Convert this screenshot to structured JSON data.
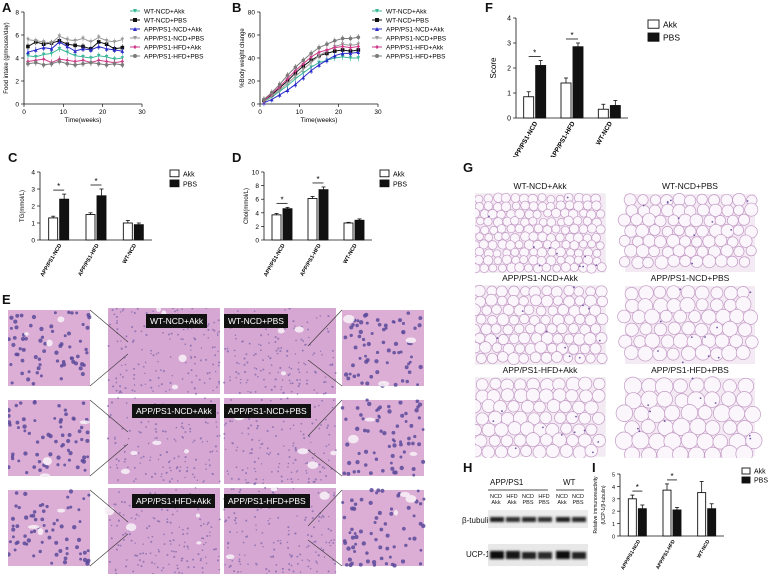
{
  "panels": {
    "A": "A",
    "B": "B",
    "C": "C",
    "D": "D",
    "E": "E",
    "F": "F",
    "G": "G",
    "H": "H",
    "I": "I"
  },
  "colors": {
    "wt_ncd_akk": "#3cb89a",
    "wt_ncd_pbs": "#111111",
    "app_ncd_akk": "#2a2ac8",
    "app_ncd_pbs": "#9a9a9a",
    "app_hfd_akk": "#d0388a",
    "app_hfd_pbs": "#7a7a7a",
    "liver_pink": "#d9a6cf",
    "fat_pink": "#e6cce6"
  },
  "legend_six": [
    {
      "label": "WT-NCD+Akk",
      "color": "#3cb89a",
      "marker": "triangle-down"
    },
    {
      "label": "WT-NCD+PBS",
      "color": "#111111",
      "marker": "square"
    },
    {
      "label": "APP/PS1-NCD+Akk",
      "color": "#2a2ac8",
      "marker": "triangle"
    },
    {
      "label": "APP/PS1-NCD+PBS",
      "color": "#9a9a9a",
      "marker": "triangle-down"
    },
    {
      "label": "APP/PS1-HFD+Akk",
      "color": "#d0388a",
      "marker": "diamond"
    },
    {
      "label": "APP/PS1-HFD+PBS",
      "color": "#7a7a7a",
      "marker": "circle"
    }
  ],
  "legend_two": {
    "akk": "Akk",
    "pbs": "PBS"
  },
  "chart_data": [
    {
      "id": "A",
      "type": "line",
      "xlabel": "Time(weeks)",
      "ylabel": "Food intake (g/mouse/day)",
      "xlim": [
        0,
        30
      ],
      "ylim": [
        0,
        8
      ],
      "xticks": [
        0,
        10,
        20,
        30
      ],
      "yticks": [
        0,
        2,
        4,
        6,
        8
      ],
      "x": [
        1,
        3,
        5,
        7,
        9,
        11,
        13,
        15,
        17,
        19,
        21,
        23,
        25
      ],
      "series": [
        {
          "name": "WT-NCD+Akk",
          "values": [
            4.2,
            4.1,
            4.3,
            4.4,
            4.8,
            4.5,
            4.2,
            4.1,
            4.0,
            4.2,
            4.1,
            3.9,
            4.0
          ]
        },
        {
          "name": "WT-NCD+PBS",
          "values": [
            5.0,
            5.4,
            5.2,
            5.3,
            5.5,
            5.2,
            5.1,
            5.0,
            4.8,
            5.4,
            5.2,
            4.8,
            4.9
          ]
        },
        {
          "name": "APP/PS1-NCD+Akk",
          "values": [
            4.5,
            4.7,
            4.9,
            4.8,
            5.4,
            5.0,
            4.6,
            4.8,
            4.7,
            5.0,
            4.8,
            4.7,
            4.6
          ]
        },
        {
          "name": "APP/PS1-NCD+PBS",
          "values": [
            5.6,
            5.5,
            5.4,
            5.3,
            5.9,
            5.6,
            5.5,
            5.7,
            5.4,
            5.8,
            5.5,
            5.4,
            5.6
          ]
        },
        {
          "name": "APP/PS1-HFD+Akk",
          "values": [
            3.7,
            3.8,
            3.9,
            3.6,
            3.9,
            3.8,
            3.7,
            3.8,
            3.6,
            3.8,
            3.7,
            3.6,
            3.7
          ]
        },
        {
          "name": "APP/PS1-HFD+PBS",
          "values": [
            3.5,
            3.6,
            3.4,
            3.5,
            3.7,
            3.5,
            3.4,
            3.5,
            3.6,
            3.5,
            3.4,
            3.5,
            3.4
          ]
        }
      ]
    },
    {
      "id": "B",
      "type": "line",
      "xlabel": "Time(weeks)",
      "ylabel": "%Body weight change",
      "xlim": [
        0,
        30
      ],
      "ylim": [
        0,
        80
      ],
      "xticks": [
        0,
        10,
        20,
        30
      ],
      "yticks": [
        0,
        20,
        40,
        60,
        80
      ],
      "x": [
        1,
        3,
        5,
        7,
        9,
        11,
        13,
        15,
        17,
        19,
        21,
        23,
        25
      ],
      "series": [
        {
          "name": "WT-NCD+Akk",
          "values": [
            2,
            6,
            11,
            16,
            22,
            27,
            32,
            36,
            38,
            40,
            41,
            40,
            40
          ]
        },
        {
          "name": "WT-NCD+PBS",
          "values": [
            3,
            8,
            14,
            20,
            27,
            33,
            38,
            42,
            44,
            46,
            47,
            46,
            47
          ]
        },
        {
          "name": "APP/PS1-NCD+Akk",
          "values": [
            1,
            4,
            8,
            12,
            17,
            23,
            29,
            34,
            38,
            42,
            44,
            44,
            45
          ]
        },
        {
          "name": "APP/PS1-NCD+PBS",
          "values": [
            2,
            7,
            12,
            18,
            24,
            30,
            36,
            42,
            46,
            50,
            52,
            51,
            52
          ]
        },
        {
          "name": "APP/PS1-HFD+Akk",
          "values": [
            3,
            9,
            15,
            22,
            29,
            35,
            41,
            45,
            47,
            49,
            50,
            49,
            50
          ]
        },
        {
          "name": "APP/PS1-HFD+PBS",
          "values": [
            4,
            10,
            17,
            25,
            32,
            38,
            44,
            49,
            52,
            55,
            57,
            57,
            58
          ]
        }
      ]
    },
    {
      "id": "C",
      "type": "bar",
      "ylabel": "TG(mmol/L)",
      "ylim": [
        0,
        4
      ],
      "yticks": [
        0,
        1,
        2,
        3,
        4
      ],
      "categories": [
        "APP/PS1-NCD",
        "APP/PS1-HFD",
        "WT-NCD"
      ],
      "series": [
        {
          "name": "Akk",
          "values": [
            1.3,
            1.5,
            1.0
          ],
          "errors": [
            0.1,
            0.1,
            0.15
          ]
        },
        {
          "name": "PBS",
          "values": [
            2.4,
            2.6,
            0.9
          ],
          "errors": [
            0.3,
            0.4,
            0.1
          ]
        }
      ],
      "significance": [
        "*",
        "*"
      ]
    },
    {
      "id": "D",
      "type": "bar",
      "ylabel": "Chol(mmol/L)",
      "ylim": [
        0,
        10
      ],
      "yticks": [
        0,
        2,
        4,
        6,
        8,
        10
      ],
      "categories": [
        "APP/PS1-NCD",
        "APP/PS1-HFD",
        "WT-NCD"
      ],
      "series": [
        {
          "name": "Akk",
          "values": [
            3.7,
            6.1,
            2.5
          ],
          "errors": [
            0.2,
            0.3,
            0.1
          ]
        },
        {
          "name": "PBS",
          "values": [
            4.6,
            7.4,
            2.9
          ],
          "errors": [
            0.2,
            0.4,
            0.2
          ]
        }
      ],
      "significance": [
        "*",
        "*"
      ]
    },
    {
      "id": "F",
      "type": "bar",
      "ylabel": "Score",
      "ylim": [
        0,
        4
      ],
      "yticks": [
        0,
        1,
        2,
        3,
        4
      ],
      "categories": [
        "APP/PS1-NCD",
        "APP/PS1-HFD",
        "WT-NCD"
      ],
      "series": [
        {
          "name": "Akk",
          "values": [
            0.85,
            1.4,
            0.35
          ],
          "errors": [
            0.2,
            0.2,
            0.2
          ]
        },
        {
          "name": "PBS",
          "values": [
            2.1,
            2.85,
            0.5
          ],
          "errors": [
            0.2,
            0.15,
            0.2
          ]
        }
      ],
      "significance": [
        "*",
        "*"
      ]
    },
    {
      "id": "I",
      "type": "bar",
      "ylabel": "Relative immunoreactivity (UCP-1/β-tubulin)",
      "ylim": [
        0,
        5
      ],
      "yticks": [
        0,
        1,
        2,
        3,
        4,
        5
      ],
      "categories": [
        "APP/PS1-NCD",
        "APP/PS1-HFD",
        "WT-NCD"
      ],
      "series": [
        {
          "name": "Akk",
          "values": [
            3.0,
            3.7,
            3.5
          ],
          "errors": [
            0.3,
            0.5,
            0.9
          ]
        },
        {
          "name": "PBS",
          "values": [
            2.2,
            2.1,
            2.2
          ],
          "errors": [
            0.3,
            0.2,
            0.4
          ]
        }
      ],
      "significance": [
        "*",
        "*"
      ]
    }
  ],
  "histology_E": {
    "labels": [
      "WT-NCD+Akk",
      "WT-NCD+PBS",
      "APP/PS1-NCD+Akk",
      "APP/PS1-NCD+PBS",
      "APP/PS1-HFD+Akk",
      "APP/PS1-HFD+PBS"
    ]
  },
  "histology_G": {
    "labels": [
      "WT-NCD+Akk",
      "WT-NCD+PBS",
      "APP/PS1-NCD+Akk",
      "APP/PS1-NCD+PBS",
      "APP/PS1-HFD+Akk",
      "APP/PS1-HFD+PBS"
    ]
  },
  "blot_H": {
    "group_app": "APP/PS1",
    "group_wt": "WT",
    "lanes": [
      {
        "diet": "NCD",
        "treat": "Akk"
      },
      {
        "diet": "HFD",
        "treat": "Akk"
      },
      {
        "diet": "NCD",
        "treat": "PBS"
      },
      {
        "diet": "HFD",
        "treat": "PBS"
      },
      {
        "diet": "NCD",
        "treat": "Akk"
      },
      {
        "diet": "NCD",
        "treat": "PBS"
      }
    ],
    "band_tubulin": "β-tubulin",
    "band_ucp": "UCP-1"
  }
}
